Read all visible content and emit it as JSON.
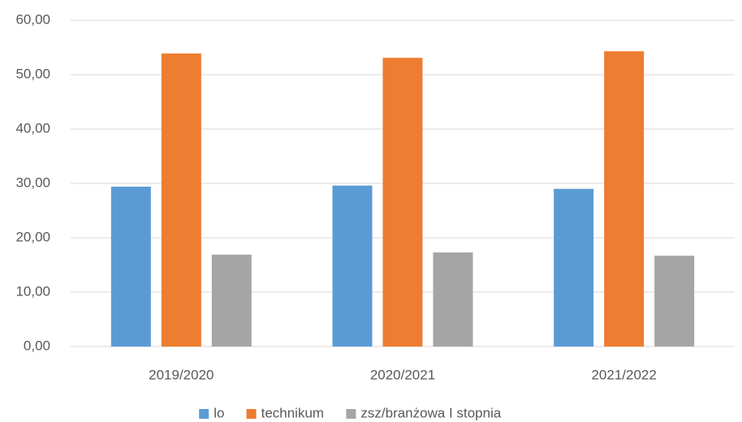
{
  "chart_data": {
    "type": "bar",
    "categories": [
      "2019/2020",
      "2020/2021",
      "2021/2022"
    ],
    "series": [
      {
        "name": "lo",
        "color": "#5b9bd5",
        "values": [
          29.4,
          29.6,
          29.0
        ]
      },
      {
        "name": "technikum",
        "color": "#ed7d31",
        "values": [
          53.9,
          53.1,
          54.3
        ]
      },
      {
        "name": "zsz/branżowa I stopnia",
        "color": "#a5a5a5",
        "values": [
          16.9,
          17.3,
          16.7
        ]
      }
    ],
    "ylim": [
      0,
      60
    ],
    "yticks": [
      {
        "value": 0,
        "label": "0,00"
      },
      {
        "value": 10,
        "label": "10,00"
      },
      {
        "value": 20,
        "label": "20,00"
      },
      {
        "value": 30,
        "label": "30,00"
      },
      {
        "value": 40,
        "label": "40,00"
      },
      {
        "value": 50,
        "label": "50,00"
      },
      {
        "value": 60,
        "label": "60,00"
      }
    ],
    "grid": true,
    "legend": "bottom"
  }
}
